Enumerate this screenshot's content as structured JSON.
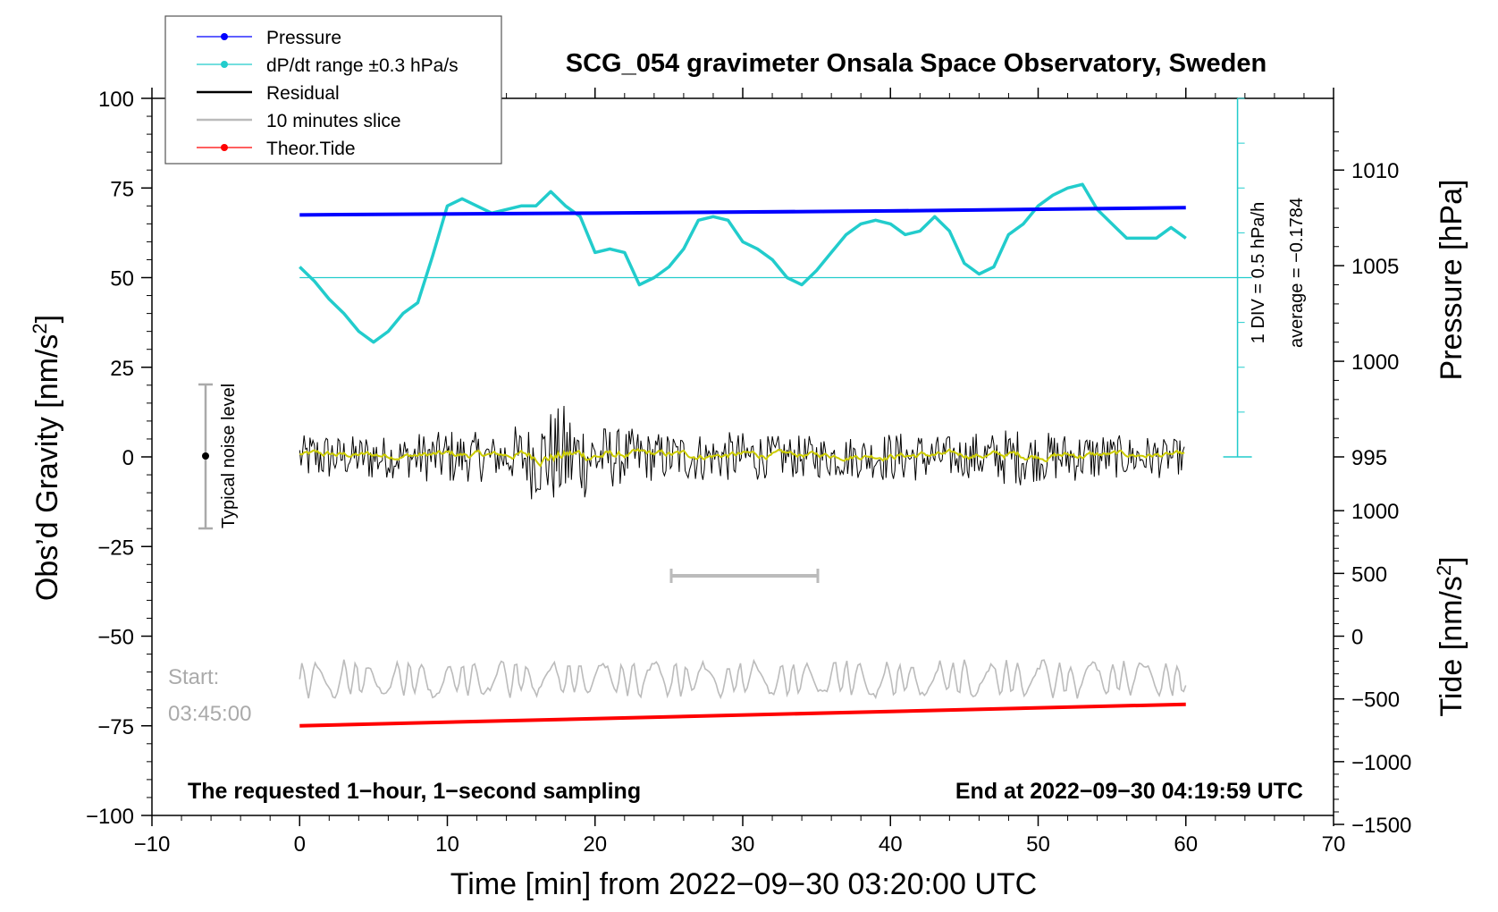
{
  "chart_data": {
    "type": "line",
    "title": "SCG_054 gravimeter Onsala Space Observatory, Sweden",
    "xlabel": "Time [min] from 2022−09−30 03:20:00 UTC",
    "xlim": [
      -10,
      70
    ],
    "x_ticks": [
      "−10",
      "0",
      "10",
      "20",
      "30",
      "40",
      "50",
      "60",
      "70"
    ],
    "left_axis": {
      "label": "Obs’d Gravity [nm/s",
      "label_sup": "2",
      "label_end": "]",
      "ylim": [
        -100,
        100
      ],
      "ticks": [
        "100",
        "75",
        "50",
        "25",
        "0",
        "−25",
        "−50",
        "−75",
        "−100"
      ]
    },
    "pressure_axis": {
      "label": "Pressure [hPa]",
      "ylim_at_gravity": [
        [
          1010,
          80
        ],
        [
          995,
          0
        ]
      ],
      "ticks": [
        "1010",
        "1005",
        "1000",
        "995"
      ]
    },
    "tide_axis": {
      "label": "Tide [nm/s",
      "label_sup": "2",
      "label_end": "]",
      "ticks": [
        "1000",
        "500",
        "0",
        "−500",
        "−1000",
        "−1500"
      ]
    },
    "legend": [
      {
        "label": "Pressure",
        "color": "#0000ff",
        "marker": true
      },
      {
        "label": "dP/dt range ±0.3 hPa/s",
        "color": "#22cccc",
        "marker": true
      },
      {
        "label": "Residual",
        "color": "#000000",
        "marker": false
      },
      {
        "label": "10 minutes slice",
        "color": "#bbbbbb",
        "marker": false
      },
      {
        "label": "Theor.Tide",
        "color": "#ff0000",
        "marker": true
      }
    ],
    "series": [
      {
        "name": "Pressure",
        "color": "#0000ff",
        "x": [
          0,
          20,
          40,
          60
        ],
        "values": [
          67.5,
          68.0,
          68.6,
          69.5
        ]
      },
      {
        "name": "dP/dt",
        "color": "#22cccc",
        "x": [
          0,
          1,
          2,
          3,
          4,
          5,
          6,
          7,
          8,
          9,
          10,
          11,
          12,
          13,
          14,
          15,
          16,
          17,
          18,
          19,
          20,
          21,
          22,
          23,
          24,
          25,
          26,
          27,
          28,
          29,
          30,
          31,
          32,
          33,
          34,
          35,
          36,
          37,
          38,
          39,
          40,
          41,
          42,
          43,
          44,
          45,
          46,
          47,
          48,
          49,
          50,
          51,
          52,
          53,
          54,
          55,
          56,
          57,
          58,
          59,
          60
        ],
        "values": [
          53,
          49,
          44,
          40,
          35,
          32,
          35,
          40,
          43,
          56,
          70,
          72,
          70,
          68,
          69,
          70,
          70,
          74,
          70,
          67,
          57,
          58,
          57,
          48,
          50,
          53,
          58,
          66,
          67,
          66,
          60,
          58,
          55,
          50,
          48,
          52,
          57,
          62,
          65,
          66,
          65,
          62,
          63,
          67,
          63,
          54,
          51,
          53,
          62,
          65,
          70,
          73,
          75,
          76,
          69,
          65,
          61,
          61,
          61,
          64,
          61
        ]
      },
      {
        "name": "Residual",
        "color": "#000000",
        "x_range": [
          0,
          60
        ],
        "envelope_amplitude": [
          6,
          7,
          7,
          6,
          6,
          7,
          6,
          6,
          7,
          7,
          8,
          7,
          7,
          6,
          7,
          9,
          12,
          14,
          15,
          12,
          10,
          9,
          8,
          8,
          7,
          7,
          7,
          7,
          6,
          7,
          7,
          7,
          6,
          6,
          6,
          6,
          6,
          6,
          6,
          6,
          7,
          7,
          7,
          6,
          6,
          6,
          7,
          7,
          8,
          8,
          7,
          7,
          7,
          7,
          7,
          6,
          6,
          6,
          6,
          5,
          5
        ]
      },
      {
        "name": "Residual smoothed",
        "color": "#cccc00",
        "x_range": [
          0,
          60
        ]
      },
      {
        "name": "10 minutes slice",
        "color": "#bbbbbb",
        "x_range": [
          0,
          60
        ],
        "center": -62,
        "amplitude": 5
      },
      {
        "name": "Theor.Tide",
        "color": "#ff0000",
        "x": [
          0,
          60
        ],
        "values": [
          -75,
          -69
        ]
      }
    ],
    "annotations": {
      "noise_label": "Typical noise level",
      "noise_range": [
        -20,
        20
      ],
      "slice_bracket": [
        25,
        35
      ],
      "start_label_1": "Start:",
      "start_label_2": "03:45:00",
      "div_label": "1 DIV = 0.5 hPa/h",
      "average_label": "average = −0.1784",
      "bottom_left": "The requested 1−hour, 1−second sampling",
      "bottom_right": "End at 2022−09−30 04:19:59 UTC"
    }
  }
}
